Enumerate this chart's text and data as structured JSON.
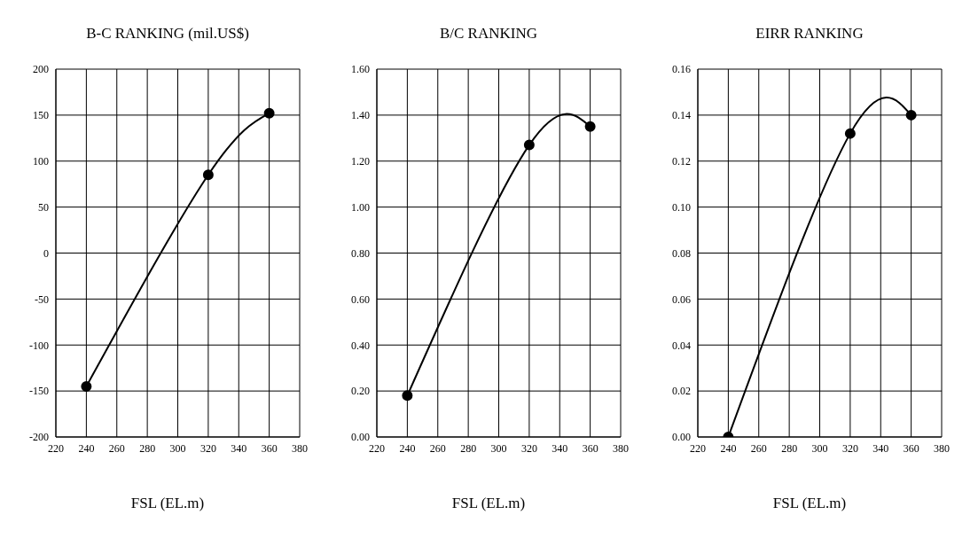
{
  "chart_data": [
    {
      "type": "line",
      "title": "B-C RANKING (mil.US$)",
      "xlabel": "FSL (EL.m)",
      "x": [
        240,
        320,
        360
      ],
      "series": [
        {
          "color": "#000000",
          "values": [
            -145,
            85,
            152
          ]
        }
      ],
      "xlim": [
        220,
        380
      ],
      "xticks": [
        220,
        240,
        260,
        280,
        300,
        320,
        340,
        360,
        380
      ],
      "ylim": [
        -200,
        200
      ],
      "yticks": [
        -200,
        -150,
        -100,
        -50,
        0,
        50,
        100,
        150,
        200
      ],
      "grid": true,
      "marker": "circle",
      "line_style": "solid"
    },
    {
      "type": "line",
      "title": "B/C RANKING",
      "xlabel": "FSL (EL.m)",
      "x": [
        240,
        320,
        360
      ],
      "series": [
        {
          "color": "#000000",
          "values": [
            0.18,
            1.27,
            1.35
          ]
        }
      ],
      "xlim": [
        220,
        380
      ],
      "xticks": [
        220,
        240,
        260,
        280,
        300,
        320,
        340,
        360,
        380
      ],
      "ylim": [
        0,
        1.6
      ],
      "yticks": [
        {
          "value": 0,
          "label": "0.00"
        },
        {
          "value": 0.2,
          "label": "0.20"
        },
        {
          "value": 0.4,
          "label": "0.40"
        },
        {
          "value": 0.6,
          "label": "0.60"
        },
        {
          "value": 0.8,
          "label": "0.80"
        },
        {
          "value": 1,
          "label": "1.00"
        },
        {
          "value": 1.2,
          "label": "1.20"
        },
        {
          "value": 1.4,
          "label": "1.40"
        },
        {
          "value": 1.6,
          "label": "1.60"
        }
      ],
      "grid": true,
      "marker": "circle",
      "line_style": "solid"
    },
    {
      "type": "line",
      "title": "EIRR RANKING",
      "xlabel": "FSL (EL.m)",
      "x": [
        240,
        320,
        360
      ],
      "series": [
        {
          "color": "#000000",
          "values": [
            0.0,
            0.132,
            0.14
          ]
        }
      ],
      "xlim": [
        220,
        380
      ],
      "xticks": [
        220,
        240,
        260,
        280,
        300,
        320,
        340,
        360,
        380
      ],
      "ylim": [
        0,
        0.16
      ],
      "yticks": [
        {
          "value": 0,
          "label": "0.00"
        },
        {
          "value": 0.02,
          "label": "0.02"
        },
        {
          "value": 0.04,
          "label": "0.04"
        },
        {
          "value": 0.06,
          "label": "0.06"
        },
        {
          "value": 0.08,
          "label": "0.08"
        },
        {
          "value": 0.1,
          "label": "0.10"
        },
        {
          "value": 0.12,
          "label": "0.12"
        },
        {
          "value": 0.14,
          "label": "0.14"
        },
        {
          "value": 0.16,
          "label": "0.16"
        }
      ],
      "grid": true,
      "marker": "circle",
      "line_style": "solid"
    }
  ]
}
